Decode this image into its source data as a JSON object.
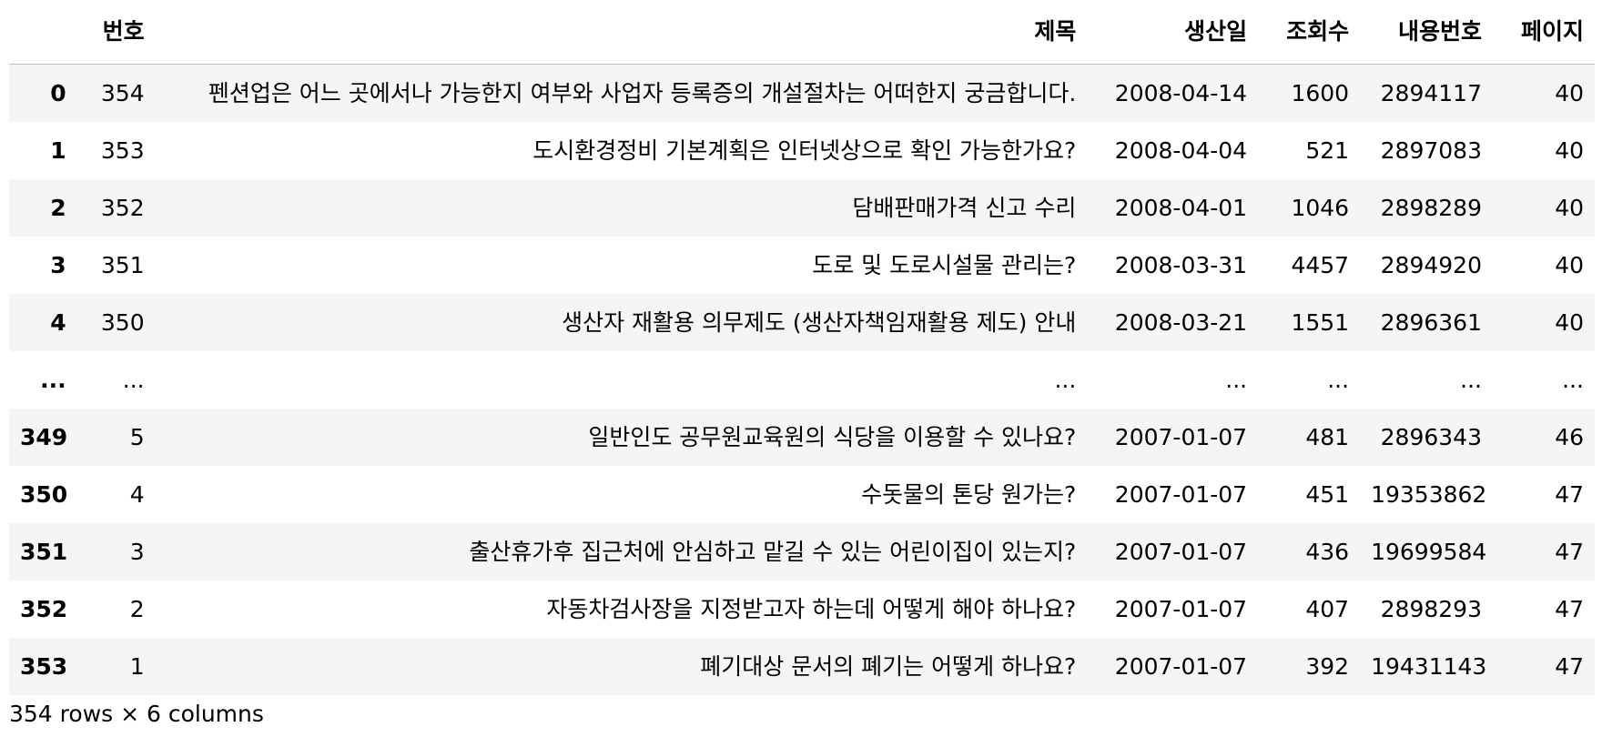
{
  "table": {
    "columns": [
      "번호",
      "제목",
      "생산일",
      "조회수",
      "내용번호",
      "페이지"
    ],
    "rows": [
      {
        "index": "0",
        "cells": [
          "354",
          "펜션업은 어느 곳에서나 가능한지 여부와 사업자 등록증의 개설절차는 어떠한지 궁금합니다.",
          "2008-04-14",
          "1600",
          "2894117",
          "40"
        ]
      },
      {
        "index": "1",
        "cells": [
          "353",
          "도시환경정비 기본계획은 인터넷상으로 확인 가능한가요?",
          "2008-04-04",
          "521",
          "2897083",
          "40"
        ]
      },
      {
        "index": "2",
        "cells": [
          "352",
          "담배판매가격 신고 수리",
          "2008-04-01",
          "1046",
          "2898289",
          "40"
        ]
      },
      {
        "index": "3",
        "cells": [
          "351",
          "도로 및 도로시설물 관리는?",
          "2008-03-31",
          "4457",
          "2894920",
          "40"
        ]
      },
      {
        "index": "4",
        "cells": [
          "350",
          "생산자 재활용 의무제도 (생산자책임재활용 제도) 안내",
          "2008-03-21",
          "1551",
          "2896361",
          "40"
        ]
      },
      {
        "index": "...",
        "cells": [
          "...",
          "...",
          "...",
          "...",
          "...",
          "..."
        ]
      },
      {
        "index": "349",
        "cells": [
          "5",
          "일반인도 공무원교육원의 식당을 이용할 수 있나요?",
          "2007-01-07",
          "481",
          "2896343",
          "46"
        ]
      },
      {
        "index": "350",
        "cells": [
          "4",
          "수돗물의 톤당 원가는?",
          "2007-01-07",
          "451",
          "19353862",
          "47"
        ]
      },
      {
        "index": "351",
        "cells": [
          "3",
          "출산휴가후 집근처에 안심하고 맡길 수 있는 어린이집이 있는지?",
          "2007-01-07",
          "436",
          "19699584",
          "47"
        ]
      },
      {
        "index": "352",
        "cells": [
          "2",
          "자동차검사장을 지정받고자 하는데 어떻게 해야 하나요?",
          "2007-01-07",
          "407",
          "2898293",
          "47"
        ]
      },
      {
        "index": "353",
        "cells": [
          "1",
          "폐기대상 문서의 폐기는 어떻게 하나요?",
          "2007-01-07",
          "392",
          "19431143",
          "47"
        ]
      }
    ]
  },
  "footer": {
    "shape_text": "354 rows × 6 columns"
  }
}
